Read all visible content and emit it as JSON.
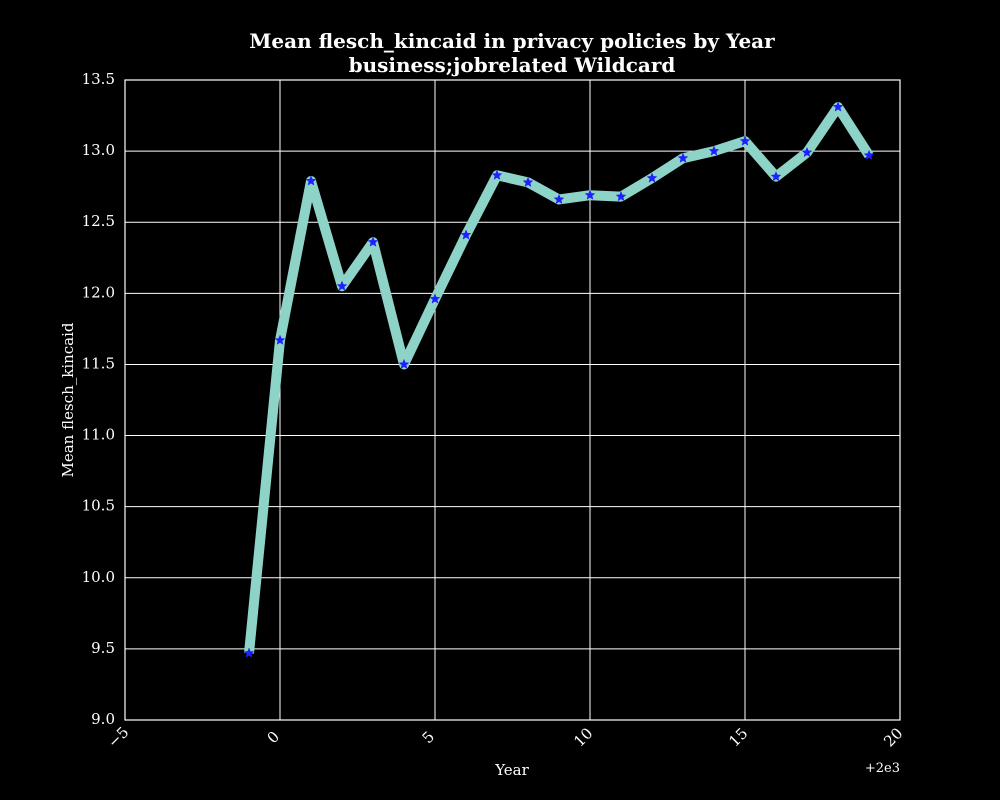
{
  "chart_data": {
    "type": "line",
    "title": "Mean flesch_kincaid in privacy policies by Year",
    "subtitle": "business;jobrelated Wildcard",
    "xlabel": "Year",
    "ylabel": "Mean flesch_kincaid",
    "x_offset_label": "+2e3",
    "xlim": [
      -5,
      20
    ],
    "ylim": [
      9.0,
      13.5
    ],
    "x_ticks": [
      -5,
      0,
      5,
      10,
      15,
      20
    ],
    "x_tick_labels": [
      "−5",
      "0",
      "5",
      "10",
      "15",
      "20"
    ],
    "y_ticks": [
      9.0,
      9.5,
      10.0,
      10.5,
      11.0,
      11.5,
      12.0,
      12.5,
      13.0,
      13.5
    ],
    "y_tick_labels": [
      "9.0",
      "9.5",
      "10.0",
      "10.5",
      "11.0",
      "11.5",
      "12.0",
      "12.5",
      "13.0",
      "13.5"
    ],
    "grid": true,
    "series": [
      {
        "line_color": "#8dd3c7",
        "marker_color": "#1f1fff",
        "x": [
          -1,
          0,
          1,
          2,
          3,
          4,
          5,
          6,
          7,
          8,
          9,
          10,
          11,
          12,
          13,
          14,
          15,
          16,
          17,
          18,
          19
        ],
        "y": [
          9.47,
          11.67,
          12.79,
          12.05,
          12.36,
          11.5,
          11.96,
          12.41,
          12.83,
          12.78,
          12.66,
          12.69,
          12.68,
          12.81,
          12.95,
          13.0,
          13.07,
          12.82,
          12.99,
          13.31,
          12.97
        ]
      }
    ]
  }
}
